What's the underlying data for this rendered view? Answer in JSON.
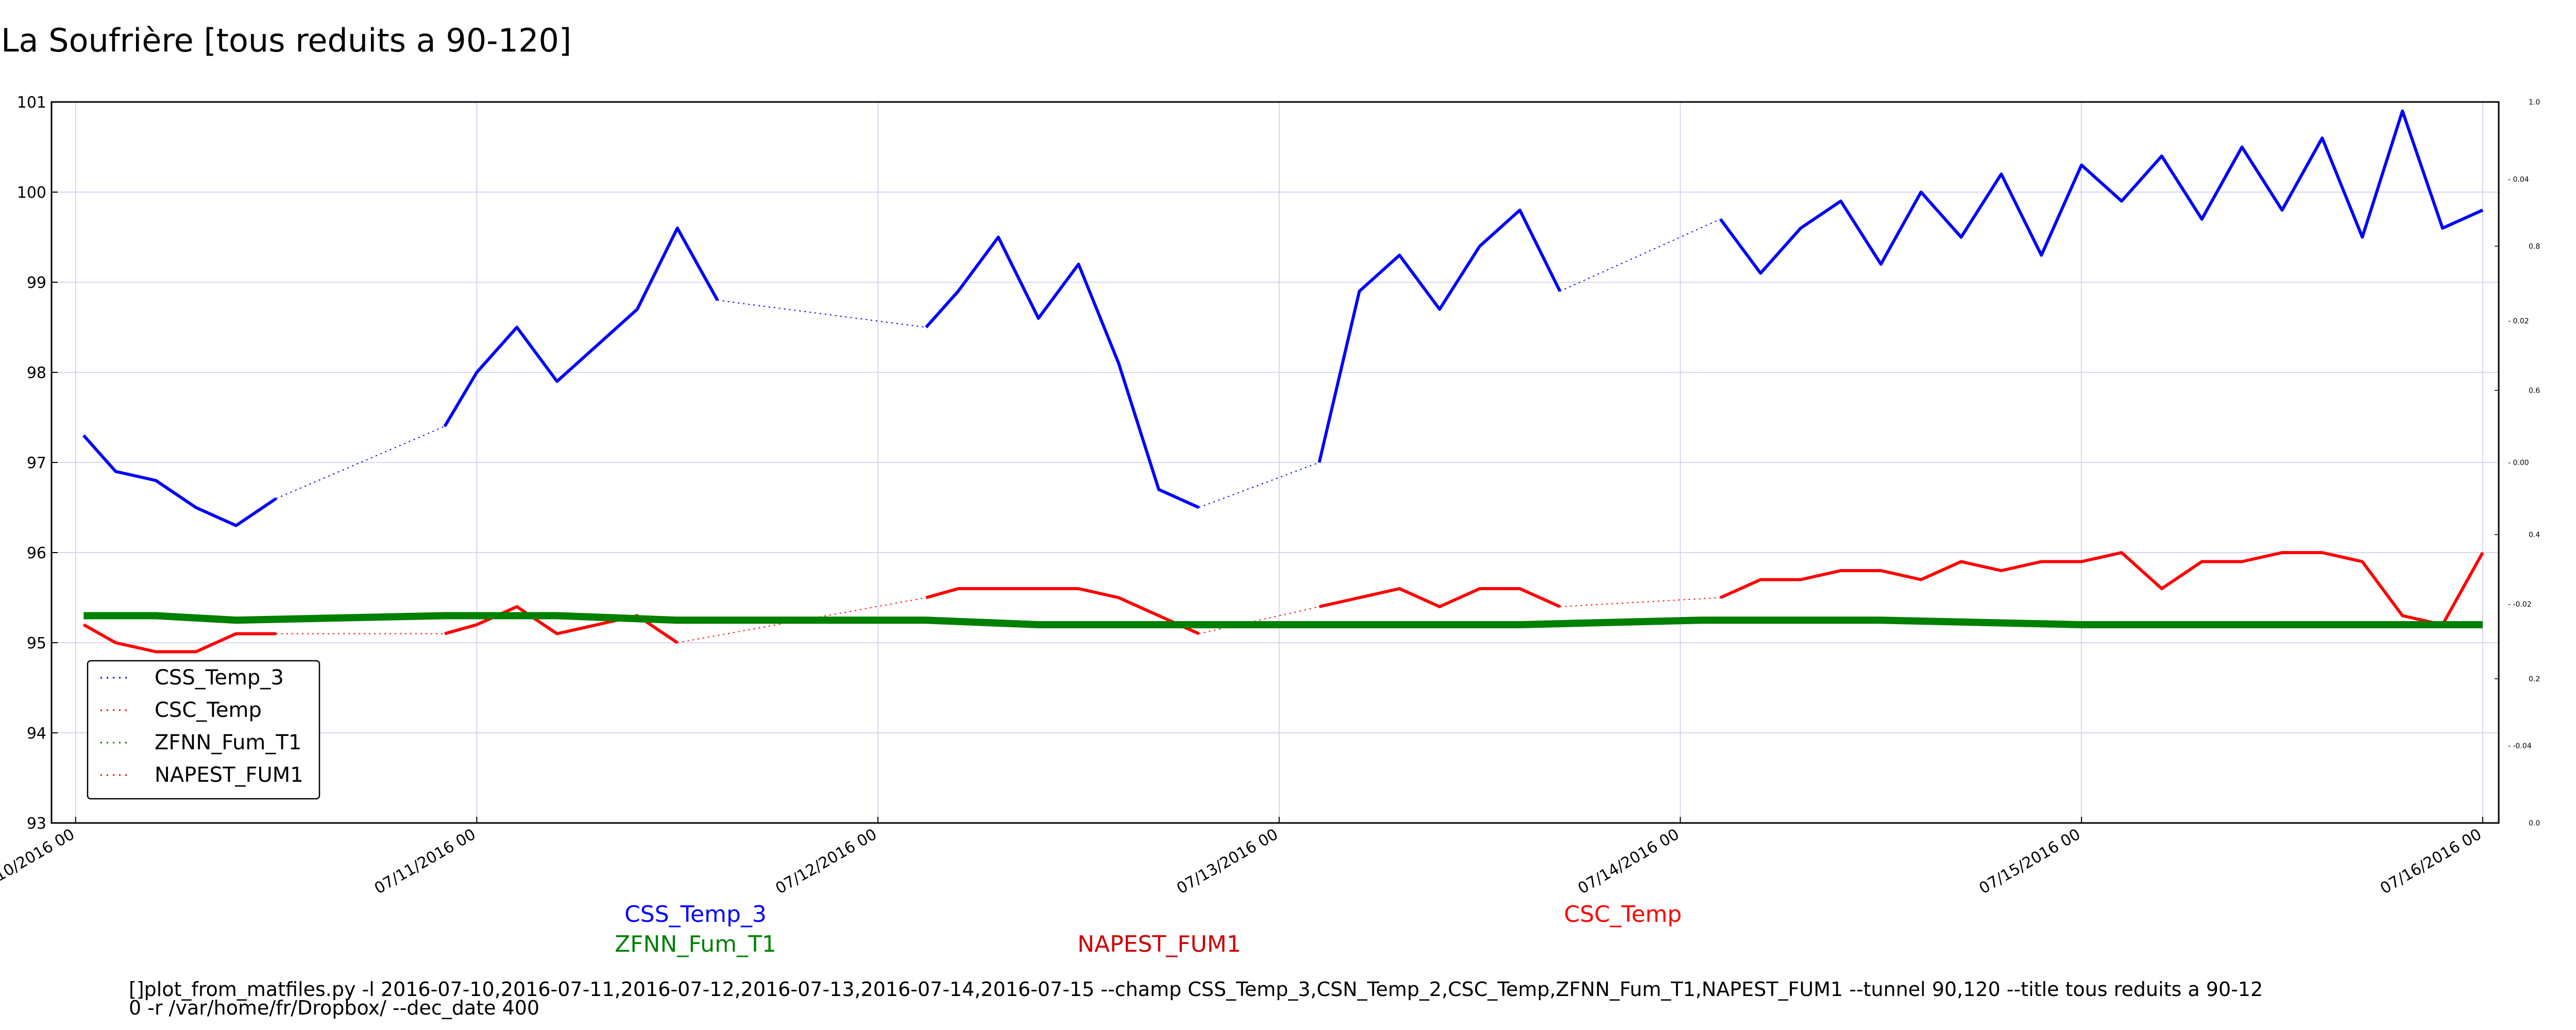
{
  "chart_data": {
    "type": "line",
    "title": "La Soufrière [tous reduits a 90-120]",
    "x_tick_labels": [
      "07/10/2016 00",
      "07/11/2016 00",
      "07/12/2016 00",
      "07/13/2016 00",
      "07/14/2016 00",
      "07/15/2016 00",
      "07/16/2016 00"
    ],
    "x_ticks_days": [
      0,
      1,
      2,
      3,
      4,
      5,
      6
    ],
    "x_range_days": [
      -0.06,
      6.04
    ],
    "y_ticks": [
      93,
      94,
      95,
      96,
      97,
      98,
      99,
      100,
      101
    ],
    "ylim": [
      93,
      101
    ],
    "y2_ticks": [
      "0.0",
      "0.2",
      "0.4",
      "0.6",
      "0.8",
      "1.0"
    ],
    "y3_ticks": [
      "-0.04",
      "-0.02",
      "0.00",
      "0.02",
      "0.04"
    ],
    "grid": true,
    "legend_position": "lower-left",
    "series": [
      {
        "name": "CSS_Temp_3",
        "color": "#0000ff",
        "x": [
          0.02,
          0.1,
          0.2,
          0.3,
          0.4,
          0.5,
          0.6,
          0.7,
          0.8,
          0.92,
          1.0,
          1.1,
          1.2,
          1.3,
          1.4,
          1.5,
          1.6,
          1.7,
          1.75,
          2.12,
          2.2,
          2.3,
          2.4,
          2.5,
          2.6,
          2.7,
          2.8,
          2.9,
          3.0,
          3.1,
          3.2,
          3.3,
          3.4,
          3.5,
          3.6,
          3.7,
          3.8,
          3.9,
          4.0,
          4.1,
          4.2,
          4.3,
          4.4,
          4.5,
          4.6,
          4.7,
          4.8,
          4.9,
          5.0,
          5.1,
          5.2,
          5.3,
          5.4,
          5.5,
          5.6,
          5.7,
          5.8,
          5.9,
          6.0
        ],
        "y": [
          97.3,
          96.9,
          96.8,
          96.5,
          96.3,
          96.6,
          null,
          null,
          null,
          97.4,
          98.0,
          98.5,
          97.9,
          98.3,
          98.7,
          99.6,
          98.8,
          null,
          null,
          98.5,
          98.9,
          99.5,
          98.6,
          99.2,
          98.1,
          96.7,
          96.5,
          null,
          null,
          97.0,
          98.9,
          99.3,
          98.7,
          99.4,
          99.8,
          98.9,
          null,
          null,
          null,
          99.7,
          99.1,
          99.6,
          99.9,
          99.2,
          100.0,
          99.5,
          100.2,
          99.3,
          100.3,
          99.9,
          100.4,
          99.7,
          100.5,
          99.8,
          100.6,
          99.5,
          100.9,
          99.6,
          99.8
        ]
      },
      {
        "name": "CSC_Temp",
        "color": "#ff0000",
        "x": [
          0.02,
          0.1,
          0.2,
          0.3,
          0.4,
          0.5,
          0.6,
          0.7,
          0.8,
          0.92,
          1.0,
          1.1,
          1.2,
          1.3,
          1.4,
          1.5,
          1.6,
          1.7,
          1.75,
          2.12,
          2.2,
          2.3,
          2.4,
          2.5,
          2.6,
          2.7,
          2.8,
          2.9,
          3.0,
          3.1,
          3.2,
          3.3,
          3.4,
          3.5,
          3.6,
          3.7,
          3.8,
          3.9,
          4.0,
          4.1,
          4.2,
          4.3,
          4.4,
          4.5,
          4.6,
          4.7,
          4.8,
          4.9,
          5.0,
          5.1,
          5.2,
          5.3,
          5.4,
          5.5,
          5.6,
          5.7,
          5.8,
          5.9,
          6.0
        ],
        "y": [
          95.2,
          95.0,
          94.9,
          94.9,
          95.1,
          95.1,
          null,
          null,
          null,
          95.1,
          95.2,
          95.4,
          95.1,
          95.2,
          95.3,
          95.0,
          null,
          null,
          null,
          95.5,
          95.6,
          95.6,
          95.6,
          95.6,
          95.5,
          95.3,
          95.1,
          null,
          null,
          95.4,
          95.5,
          95.6,
          95.4,
          95.6,
          95.6,
          95.4,
          null,
          null,
          null,
          95.5,
          95.7,
          95.7,
          95.8,
          95.8,
          95.7,
          95.9,
          95.8,
          95.9,
          95.9,
          96.0,
          95.6,
          95.9,
          95.9,
          96.0,
          96.0,
          95.9,
          95.3,
          95.2,
          96.0
        ]
      },
      {
        "name": "ZFNN_Fum_T1",
        "color": "#008000",
        "x": [
          0.02,
          0.2,
          0.4,
          0.92,
          1.2,
          1.5,
          2.12,
          2.4,
          2.6,
          2.8,
          3.1,
          3.4,
          3.6,
          4.05,
          4.5,
          5.0,
          5.5,
          6.0
        ],
        "y": [
          95.3,
          95.3,
          95.25,
          95.3,
          95.3,
          95.25,
          95.25,
          95.2,
          95.2,
          95.2,
          95.2,
          95.2,
          95.2,
          95.25,
          95.25,
          95.2,
          95.2,
          95.2
        ]
      },
      {
        "name": "NAPEST_FUM1",
        "color": "#ff0000",
        "x": [],
        "y": []
      }
    ],
    "under_labels": [
      {
        "text": "CSS_Temp_3",
        "color": "#0000ff"
      },
      {
        "text": "ZFNN_Fum_T1",
        "color": "#008000"
      },
      {
        "text": "NAPEST_FUM1",
        "color": "#cc0000"
      },
      {
        "text": "CSC_Temp",
        "color": "#ff0000"
      }
    ],
    "command_line_1": "[]plot_from_matfiles.py -l 2016-07-10,2016-07-11,2016-07-12,2016-07-13,2016-07-14,2016-07-15 --champ CSS_Temp_3,CSN_Temp_2,CSC_Temp,ZFNN_Fum_T1,NAPEST_FUM1 --tunnel 90,120 --title tous reduits a 90-12",
    "command_line_2": "0 -r /var/home/fr/Dropbox/ --dec_date 400"
  }
}
